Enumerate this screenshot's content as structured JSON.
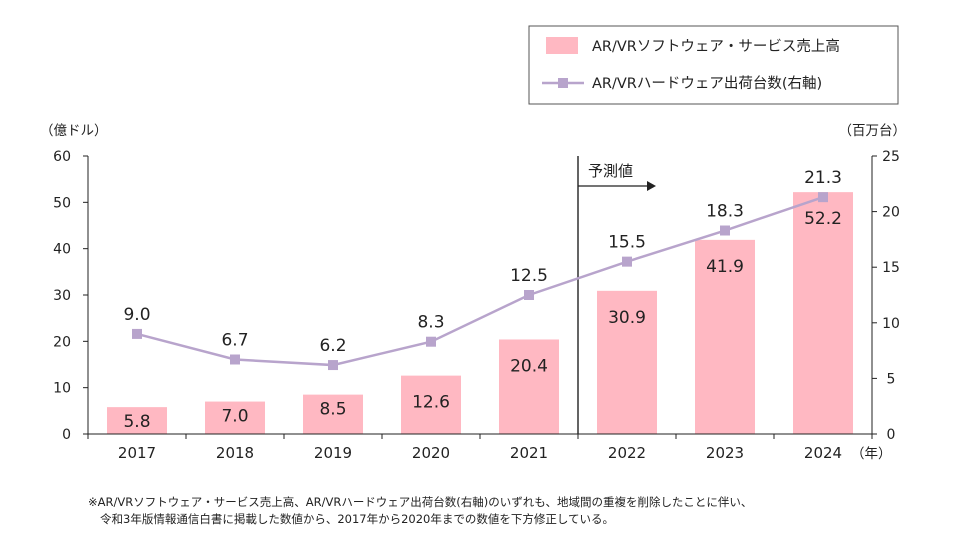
{
  "chart_data": {
    "type": "bar",
    "categories": [
      "2017",
      "2018",
      "2019",
      "2020",
      "2021",
      "2022",
      "2023",
      "2024"
    ],
    "series": [
      {
        "name": "AR/VRソフトウェア・サービス売上高",
        "type": "bar",
        "axis": "left",
        "values": [
          5.8,
          7.0,
          8.5,
          12.6,
          20.4,
          30.9,
          41.9,
          52.2
        ],
        "labels": [
          "5.8",
          "7.0",
          "8.5",
          "12.6",
          "20.4",
          "30.9",
          "41.9",
          "52.2"
        ]
      },
      {
        "name": "AR/VRハードウェア出荷台数(右軸)",
        "type": "line",
        "axis": "right",
        "values": [
          9.0,
          6.7,
          6.2,
          8.3,
          12.5,
          15.5,
          18.3,
          21.3
        ],
        "labels": [
          "9.0",
          "6.7",
          "6.2",
          "8.3",
          "12.5",
          "15.5",
          "18.3",
          "21.3"
        ]
      }
    ],
    "y_left": {
      "unit": "（億ドル）",
      "ylim": [
        0,
        60
      ],
      "ticks": [
        "0",
        "10",
        "20",
        "30",
        "40",
        "50",
        "60"
      ]
    },
    "y_right": {
      "unit": "（百万台）",
      "ylim": [
        0,
        25
      ],
      "ticks": [
        "0",
        "5",
        "10",
        "15",
        "20",
        "25"
      ]
    },
    "x_unit": "（年）",
    "forecast": {
      "label": "予測値",
      "after_category": "2021"
    },
    "colors": {
      "bar": "#ffb8c2",
      "line": "#b8a4cc",
      "marker": "#b8a4cc",
      "axis": "#222222"
    }
  },
  "note": {
    "line1": "※AR/VRソフトウェア・サービス売上高、AR/VRハードウェア出荷台数(右軸)のいずれも、地域間の重複を削除したことに伴い、",
    "line2": "令和3年版情報通信白書に掲載した数値から、2017年から2020年までの数値を下方修正している。"
  }
}
